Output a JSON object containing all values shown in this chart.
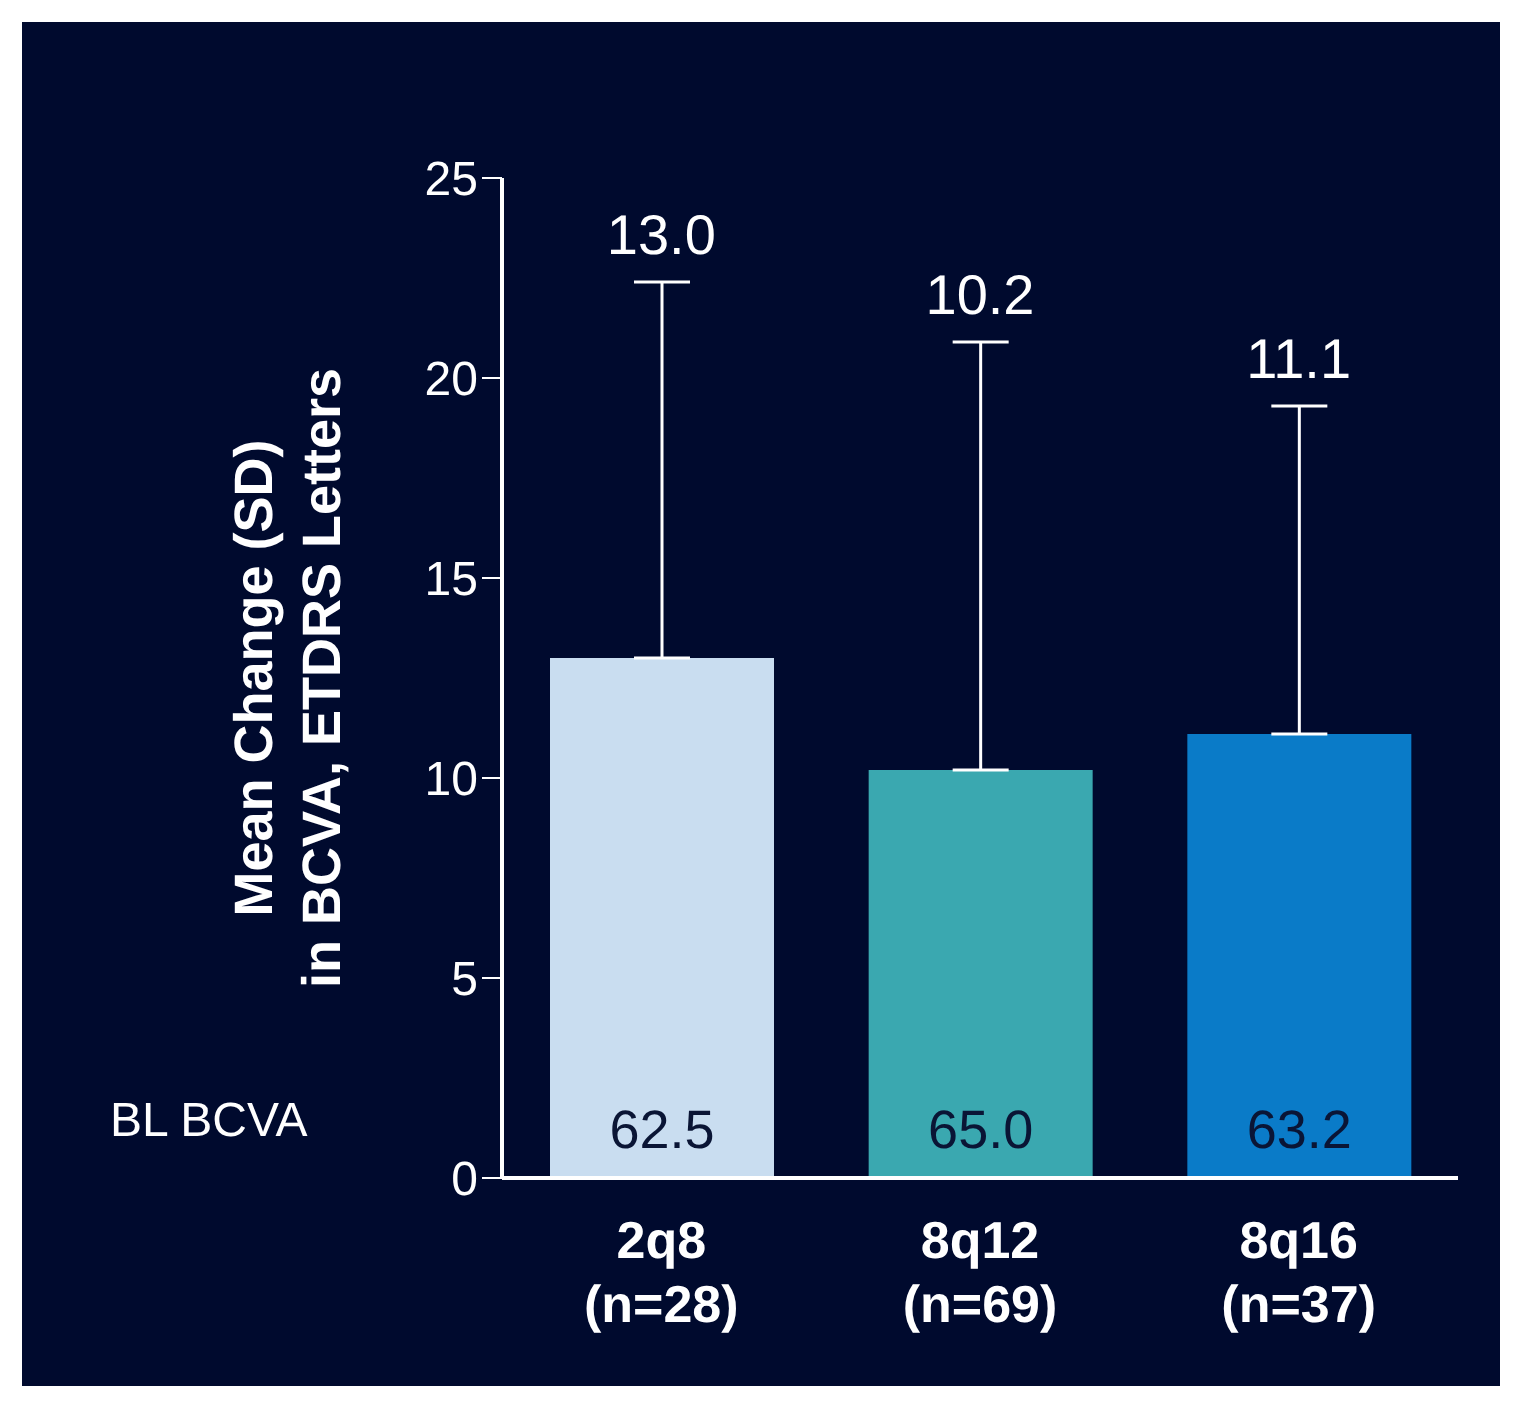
{
  "chart_data": {
    "type": "bar",
    "ylabel": "Mean Change (SD)\nin BCVA, ETDRS Letters",
    "categories": [
      "2q8\n(n=28)",
      "8q12\n(n=69)",
      "8q16\n(n=37)"
    ],
    "values": [
      13.0,
      10.2,
      11.1
    ],
    "colors": [
      "#c9ddf0",
      "#3aa8b0",
      "#0a7bc8"
    ],
    "errors": [
      [
        13.0,
        22.4
      ],
      [
        10.2,
        20.9
      ],
      [
        11.1,
        19.3
      ]
    ],
    "ylim": [
      0,
      25
    ],
    "yticks": [
      0,
      5,
      10,
      15,
      20,
      25
    ],
    "grid": false,
    "legend": false,
    "annotations": [
      "BL BCVA",
      "62.5",
      "65.0",
      "63.2",
      {
        "text": "13.0",
        "x": "2q8\n(n=28)",
        "y": 22.4
      },
      {
        "text": "10.2",
        "x": "8q12\n(n=69)",
        "y": 20.9
      },
      {
        "text": "11.1",
        "x": "8q16\n(n=37)",
        "y": 19.3
      }
    ]
  }
}
